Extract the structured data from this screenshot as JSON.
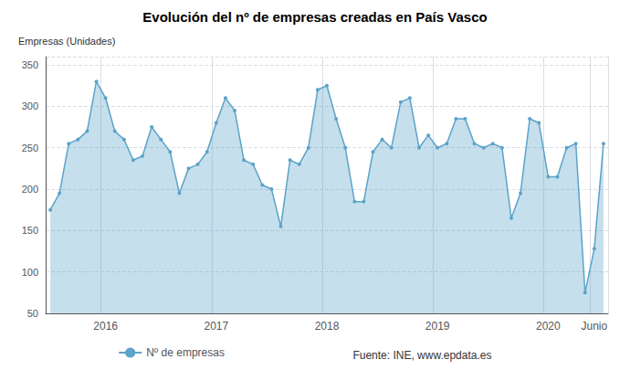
{
  "chart_data": {
    "type": "area",
    "title": "Evolución del nº de empresas creadas en País Vasco",
    "ylabel": "Empresas (Unidades)",
    "annotations": [
      "Fuente: INE, www.epdata.es"
    ],
    "categories": [
      null,
      null,
      null,
      null,
      null,
      null,
      "2016",
      null,
      null,
      null,
      null,
      null,
      null,
      null,
      null,
      null,
      null,
      null,
      "2017",
      null,
      null,
      null,
      null,
      null,
      null,
      null,
      null,
      null,
      null,
      null,
      "2018",
      null,
      null,
      null,
      null,
      null,
      null,
      null,
      null,
      null,
      null,
      null,
      "2019",
      null,
      null,
      null,
      null,
      null,
      null,
      null,
      null,
      null,
      null,
      null,
      "2020",
      null,
      null,
      null,
      null,
      "Junio",
      null
    ],
    "series": [
      {
        "name": "Nº de empresas",
        "color": "#5ba3c9",
        "marker": "circle",
        "values": [
          175,
          195,
          255,
          260,
          270,
          330,
          310,
          270,
          260,
          235,
          240,
          275,
          260,
          245,
          195,
          225,
          230,
          245,
          280,
          310,
          295,
          235,
          230,
          205,
          200,
          155,
          235,
          230,
          250,
          320,
          325,
          285,
          250,
          185,
          185,
          245,
          260,
          250,
          305,
          310,
          250,
          265,
          250,
          255,
          285,
          285,
          255,
          250,
          255,
          250,
          165,
          195,
          285,
          280,
          215,
          215,
          250,
          255,
          75,
          128,
          255
        ]
      }
    ],
    "ylim": [
      50,
      360
    ],
    "yticks": [
      50,
      100,
      150,
      200,
      250,
      300,
      350
    ],
    "grid": true,
    "legend": "bottom"
  }
}
